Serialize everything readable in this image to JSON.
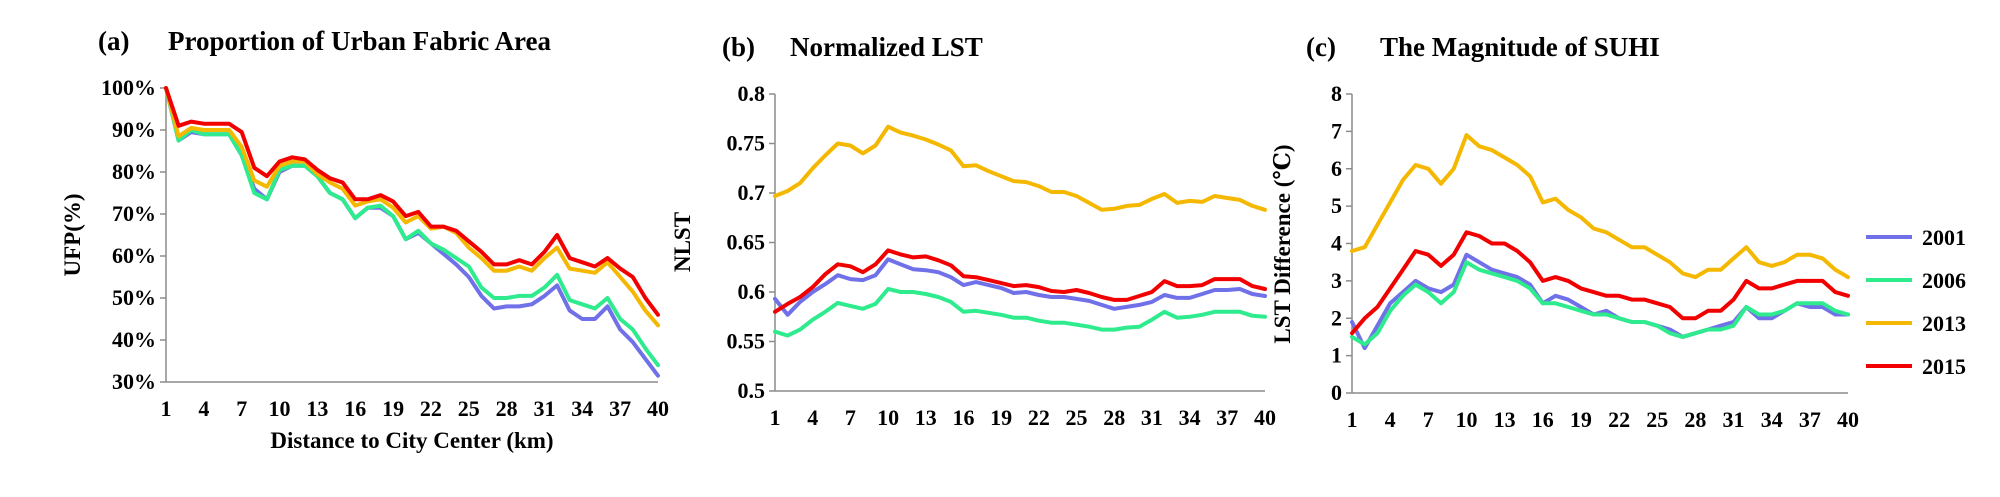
{
  "colors": {
    "2001": "#7070E8",
    "2006": "#2EEB8E",
    "2013": "#F5B800",
    "2015": "#F20000",
    "axis": "#8c8c8c"
  },
  "legend": [
    "2001",
    "2006",
    "2013",
    "2015"
  ],
  "chart_data": [
    {
      "panel": "(a)",
      "type": "line",
      "title": "Proportion of Urban Fabric Area",
      "xlabel": "Distance to City Center (km)",
      "ylabel": "UFP(%)",
      "x": [
        1,
        2,
        3,
        4,
        5,
        6,
        7,
        8,
        9,
        10,
        11,
        12,
        13,
        14,
        15,
        16,
        17,
        18,
        19,
        20,
        21,
        22,
        23,
        24,
        25,
        26,
        27,
        28,
        29,
        30,
        31,
        32,
        33,
        34,
        35,
        36,
        37,
        38,
        39,
        40
      ],
      "xticks": [
        1,
        4,
        7,
        10,
        13,
        16,
        19,
        22,
        25,
        28,
        31,
        34,
        37,
        40
      ],
      "xtick_labels": [
        "1",
        "4",
        "7",
        "10",
        "13",
        "16",
        "19",
        "22",
        "25",
        "28",
        "31",
        "34",
        "37",
        "40"
      ],
      "xlim": [
        1,
        40
      ],
      "ylim": [
        30,
        100
      ],
      "yticks": [
        30,
        40,
        50,
        60,
        70,
        80,
        90,
        100
      ],
      "ytick_labels": [
        "30%",
        "40%",
        "50%",
        "60%",
        "70%",
        "80%",
        "90%",
        "100%"
      ],
      "grid": false,
      "series": [
        {
          "name": "2001",
          "values": [
            100,
            87.5,
            89.5,
            89,
            89,
            89,
            84,
            76,
            73.5,
            80,
            81.5,
            81.5,
            79,
            75,
            73.5,
            69,
            71.5,
            71.5,
            69.5,
            64,
            65.5,
            63,
            60.5,
            58,
            55,
            50.5,
            47.5,
            48,
            48,
            48.5,
            50.5,
            53,
            47,
            45,
            45,
            48,
            42.5,
            39.5,
            35.5,
            31.5
          ]
        },
        {
          "name": "2006",
          "values": [
            100,
            87.5,
            90,
            89,
            89,
            89,
            84,
            75,
            73.5,
            80.5,
            81.5,
            81.5,
            79,
            75,
            73.5,
            69,
            71.5,
            72,
            69.5,
            64,
            66,
            63,
            61.5,
            59.5,
            57.5,
            52.5,
            50,
            50,
            50.5,
            50.5,
            52.5,
            55.5,
            49.5,
            48.5,
            47.5,
            50,
            45,
            42.5,
            38,
            34
          ]
        },
        {
          "name": "2013",
          "values": [
            100,
            88.5,
            90.5,
            90,
            90,
            90,
            86,
            78,
            76.5,
            81.5,
            82.5,
            82.5,
            79.5,
            77.5,
            76,
            72,
            73,
            73.5,
            71.5,
            68,
            69.5,
            66.5,
            67,
            65.5,
            62,
            59.5,
            56.5,
            56.5,
            57.5,
            56.5,
            59.5,
            62,
            57,
            56.5,
            56,
            58.5,
            55,
            51.5,
            47,
            43.5
          ]
        },
        {
          "name": "2015",
          "values": [
            100,
            91,
            92,
            91.5,
            91.5,
            91.5,
            89.5,
            81,
            79,
            82.5,
            83.5,
            83,
            80.5,
            78.5,
            77.5,
            73.5,
            73.5,
            74.5,
            73,
            69.5,
            70.5,
            67,
            67,
            66,
            63.5,
            61,
            58,
            58,
            59,
            58,
            61,
            65,
            59.5,
            58.5,
            57.5,
            59.5,
            57,
            55,
            50,
            46
          ]
        }
      ]
    },
    {
      "panel": "(b)",
      "type": "line",
      "title": "Normalized LST",
      "xlabel": "",
      "ylabel": "NLST",
      "x": [
        1,
        2,
        3,
        4,
        5,
        6,
        7,
        8,
        9,
        10,
        11,
        12,
        13,
        14,
        15,
        16,
        17,
        18,
        19,
        20,
        21,
        22,
        23,
        24,
        25,
        26,
        27,
        28,
        29,
        30,
        31,
        32,
        33,
        34,
        35,
        36,
        37,
        38,
        39,
        40
      ],
      "xticks": [
        1,
        4,
        7,
        10,
        13,
        16,
        19,
        22,
        25,
        28,
        31,
        34,
        37,
        40
      ],
      "xtick_labels": [
        "1",
        "4",
        "7",
        "10",
        "13",
        "16",
        "19",
        "22",
        "25",
        "28",
        "31",
        "34",
        "37",
        "40"
      ],
      "xlim": [
        1,
        40
      ],
      "ylim": [
        0.5,
        0.8
      ],
      "yticks": [
        0.5,
        0.55,
        0.6,
        0.65,
        0.7,
        0.75,
        0.8
      ],
      "ytick_labels": [
        "0.5",
        "0.55",
        "0.6",
        "0.65",
        "0.7",
        "0.75",
        "0.8"
      ],
      "grid": false,
      "series": [
        {
          "name": "2001",
          "values": [
            0.593,
            0.577,
            0.59,
            0.6,
            0.608,
            0.617,
            0.613,
            0.612,
            0.617,
            0.633,
            0.628,
            0.623,
            0.622,
            0.62,
            0.615,
            0.607,
            0.61,
            0.607,
            0.604,
            0.599,
            0.6,
            0.597,
            0.595,
            0.595,
            0.593,
            0.591,
            0.587,
            0.583,
            0.585,
            0.587,
            0.59,
            0.597,
            0.594,
            0.594,
            0.598,
            0.602,
            0.602,
            0.603,
            0.598,
            0.596
          ]
        },
        {
          "name": "2006",
          "values": [
            0.56,
            0.556,
            0.562,
            0.572,
            0.58,
            0.589,
            0.586,
            0.583,
            0.588,
            0.603,
            0.6,
            0.6,
            0.598,
            0.595,
            0.59,
            0.58,
            0.581,
            0.579,
            0.577,
            0.574,
            0.574,
            0.571,
            0.569,
            0.569,
            0.567,
            0.565,
            0.562,
            0.562,
            0.564,
            0.565,
            0.572,
            0.58,
            0.574,
            0.575,
            0.577,
            0.58,
            0.58,
            0.58,
            0.576,
            0.575
          ]
        },
        {
          "name": "2013",
          "values": [
            0.697,
            0.702,
            0.71,
            0.725,
            0.738,
            0.75,
            0.748,
            0.74,
            0.748,
            0.767,
            0.761,
            0.758,
            0.754,
            0.749,
            0.743,
            0.727,
            0.728,
            0.722,
            0.717,
            0.712,
            0.711,
            0.707,
            0.701,
            0.701,
            0.697,
            0.69,
            0.683,
            0.684,
            0.687,
            0.688,
            0.694,
            0.699,
            0.69,
            0.692,
            0.691,
            0.697,
            0.695,
            0.693,
            0.687,
            0.683
          ]
        },
        {
          "name": "2015",
          "values": [
            0.58,
            0.588,
            0.595,
            0.605,
            0.618,
            0.628,
            0.626,
            0.62,
            0.628,
            0.642,
            0.638,
            0.635,
            0.636,
            0.632,
            0.627,
            0.616,
            0.615,
            0.612,
            0.609,
            0.606,
            0.607,
            0.605,
            0.601,
            0.6,
            0.602,
            0.599,
            0.595,
            0.592,
            0.592,
            0.596,
            0.6,
            0.611,
            0.606,
            0.606,
            0.607,
            0.613,
            0.613,
            0.613,
            0.606,
            0.603
          ]
        }
      ]
    },
    {
      "panel": "(c)",
      "type": "line",
      "title": "The Magnitude of SUHI",
      "xlabel": "",
      "ylabel": "LST Difference (℃)",
      "x": [
        1,
        2,
        3,
        4,
        5,
        6,
        7,
        8,
        9,
        10,
        11,
        12,
        13,
        14,
        15,
        16,
        17,
        18,
        19,
        20,
        21,
        22,
        23,
        24,
        25,
        26,
        27,
        28,
        29,
        30,
        31,
        32,
        33,
        34,
        35,
        36,
        37,
        38,
        39,
        40
      ],
      "xticks": [
        1,
        4,
        7,
        10,
        13,
        16,
        19,
        22,
        25,
        28,
        31,
        34,
        37,
        40
      ],
      "xtick_labels": [
        "1",
        "4",
        "7",
        "10",
        "13",
        "16",
        "19",
        "22",
        "25",
        "28",
        "31",
        "34",
        "37",
        "40"
      ],
      "xlim": [
        1,
        40
      ],
      "ylim": [
        0,
        8
      ],
      "yticks": [
        0,
        1,
        2,
        3,
        4,
        5,
        6,
        7,
        8
      ],
      "ytick_labels": [
        "0",
        "1",
        "2",
        "3",
        "4",
        "5",
        "6",
        "7",
        "8"
      ],
      "grid": false,
      "legend_position": "right",
      "series": [
        {
          "name": "2001",
          "values": [
            1.9,
            1.2,
            1.8,
            2.4,
            2.7,
            3.0,
            2.8,
            2.7,
            2.9,
            3.7,
            3.5,
            3.3,
            3.2,
            3.1,
            2.9,
            2.4,
            2.6,
            2.5,
            2.3,
            2.1,
            2.2,
            2.0,
            1.9,
            1.9,
            1.8,
            1.7,
            1.5,
            1.6,
            1.7,
            1.8,
            1.9,
            2.3,
            2.0,
            2.0,
            2.2,
            2.4,
            2.3,
            2.3,
            2.1,
            2.1
          ]
        },
        {
          "name": "2006",
          "values": [
            1.5,
            1.3,
            1.6,
            2.2,
            2.6,
            2.9,
            2.7,
            2.4,
            2.7,
            3.5,
            3.3,
            3.2,
            3.1,
            3.0,
            2.8,
            2.4,
            2.4,
            2.3,
            2.2,
            2.1,
            2.1,
            2.0,
            1.9,
            1.9,
            1.8,
            1.6,
            1.5,
            1.6,
            1.7,
            1.7,
            1.8,
            2.3,
            2.1,
            2.1,
            2.2,
            2.4,
            2.4,
            2.4,
            2.2,
            2.1
          ]
        },
        {
          "name": "2013",
          "values": [
            3.8,
            3.9,
            4.5,
            5.1,
            5.7,
            6.1,
            6.0,
            5.6,
            6.0,
            6.9,
            6.6,
            6.5,
            6.3,
            6.1,
            5.8,
            5.1,
            5.2,
            4.9,
            4.7,
            4.4,
            4.3,
            4.1,
            3.9,
            3.9,
            3.7,
            3.5,
            3.2,
            3.1,
            3.3,
            3.3,
            3.6,
            3.9,
            3.5,
            3.4,
            3.5,
            3.7,
            3.7,
            3.6,
            3.3,
            3.1
          ]
        },
        {
          "name": "2015",
          "values": [
            1.6,
            2.0,
            2.3,
            2.8,
            3.3,
            3.8,
            3.7,
            3.4,
            3.7,
            4.3,
            4.2,
            4.0,
            4.0,
            3.8,
            3.5,
            3.0,
            3.1,
            3.0,
            2.8,
            2.7,
            2.6,
            2.6,
            2.5,
            2.5,
            2.4,
            2.3,
            2.0,
            2.0,
            2.2,
            2.2,
            2.5,
            3.0,
            2.8,
            2.8,
            2.9,
            3.0,
            3.0,
            3.0,
            2.7,
            2.6
          ]
        }
      ]
    }
  ]
}
